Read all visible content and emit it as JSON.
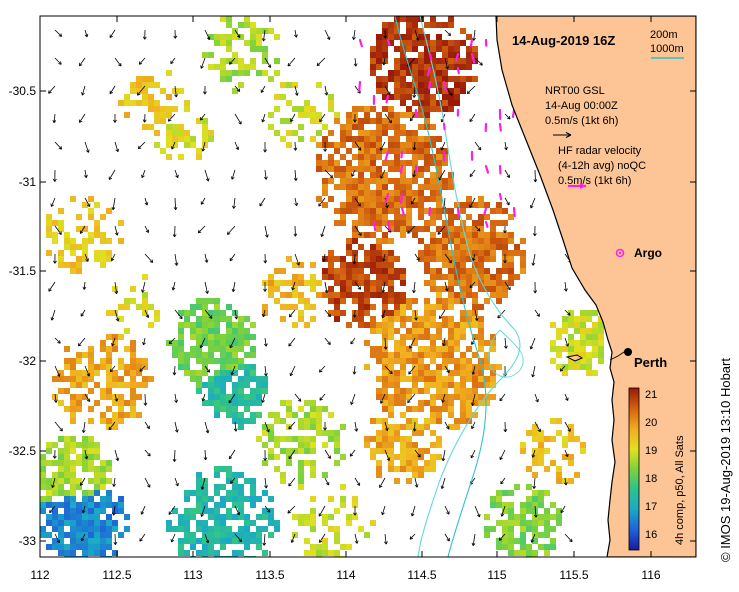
{
  "map": {
    "title": "14-Aug-2019 16Z",
    "credit": "© IMOS 19-Aug-2019 13:10 Hobart",
    "lon_range": [
      112,
      116.3
    ],
    "lat_range": [
      -33.1,
      -30.05
    ],
    "x_ticks": [
      "112",
      "112.5",
      "113",
      "113.5",
      "114",
      "114.5",
      "115",
      "115.5",
      "116"
    ],
    "y_ticks": [
      "-30.5",
      "-31",
      "-31.5",
      "-32",
      "-32.5",
      "-33"
    ],
    "contour_legend": {
      "shallow": "200m",
      "deep": "1000m"
    },
    "gsl_legend": {
      "line1": "NRT00 GSL",
      "line2": "14-Aug 00:00Z",
      "line3": "0.5m/s (1kt 6h)"
    },
    "hf_legend": {
      "line1": "HF radar velocity",
      "line2": "(4-12h avg) noQC",
      "line3": "0.5m/s (1kt 6h)"
    },
    "argo_label": "Argo",
    "city_label": "Perth",
    "colorbar": {
      "label": "4h comp, p50, All Sats",
      "ticks": [
        "16",
        "17",
        "18",
        "19",
        "20",
        "21"
      ],
      "min": 15.6,
      "max": 21.4
    },
    "colors": {
      "land": "#fdc495",
      "contour_200": "#2ec4c4",
      "contour_1000": "#5fd9d9",
      "hf_arrow": "#ff1ee8",
      "gsl_arrow": "#000000"
    }
  }
}
